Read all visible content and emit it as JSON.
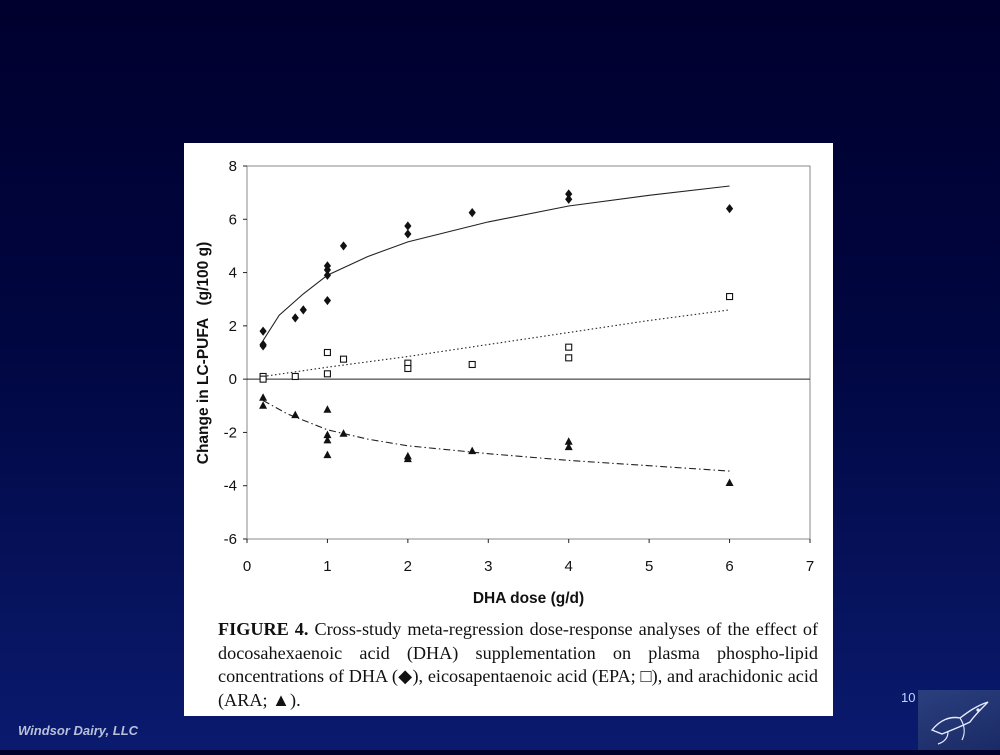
{
  "slide": {
    "slide_number": "10",
    "footer_company": "Windsor Dairy, LLC"
  },
  "caption": {
    "label": "FIGURE 4.",
    "text": " Cross-study meta-regression dose-response analyses of the effect of docosahexaenoic acid (DHA) supplementation on plasma phospho-lipid concentrations of DHA (◆), eicosapentaenoic acid (EPA; □), and arachidonic acid (ARA; ▲)."
  },
  "logo": {
    "icon": "bird-sketch-icon"
  },
  "chart_data": {
    "type": "scatter",
    "xlabel": "DHA dose (g/d)",
    "ylabel": "Change in LC-PUFA   (g/100 g)",
    "xlim": [
      0,
      7
    ],
    "ylim": [
      -6,
      8
    ],
    "xticks": [
      0,
      1,
      2,
      3,
      4,
      5,
      6,
      7
    ],
    "yticks": [
      -6,
      -4,
      -2,
      0,
      2,
      4,
      6,
      8
    ],
    "grid": false,
    "legend": "none",
    "series": [
      {
        "marker": "diamond",
        "line_style": "solid",
        "points": [
          [
            0.2,
            1.8
          ],
          [
            0.2,
            1.3
          ],
          [
            0.2,
            1.25
          ],
          [
            0.6,
            2.3
          ],
          [
            0.7,
            2.6
          ],
          [
            1.0,
            4.25
          ],
          [
            1.0,
            4.1
          ],
          [
            1.0,
            3.9
          ],
          [
            1.0,
            2.95
          ],
          [
            1.2,
            5.0
          ],
          [
            2.0,
            5.75
          ],
          [
            2.0,
            5.45
          ],
          [
            2.8,
            6.25
          ],
          [
            4.0,
            6.95
          ],
          [
            4.0,
            6.75
          ],
          [
            6.0,
            6.4
          ]
        ],
        "fit": [
          [
            0.2,
            1.45
          ],
          [
            0.4,
            2.4
          ],
          [
            0.7,
            3.2
          ],
          [
            1.0,
            3.9
          ],
          [
            1.5,
            4.6
          ],
          [
            2.0,
            5.15
          ],
          [
            3.0,
            5.9
          ],
          [
            4.0,
            6.5
          ],
          [
            5.0,
            6.9
          ],
          [
            6.0,
            7.25
          ]
        ]
      },
      {
        "marker": "open-square",
        "line_style": "dotted",
        "points": [
          [
            0.2,
            0.1
          ],
          [
            0.2,
            0.0
          ],
          [
            0.6,
            0.1
          ],
          [
            1.0,
            1.0
          ],
          [
            1.0,
            0.2
          ],
          [
            1.2,
            0.75
          ],
          [
            2.0,
            0.6
          ],
          [
            2.0,
            0.4
          ],
          [
            2.8,
            0.55
          ],
          [
            4.0,
            1.2
          ],
          [
            4.0,
            0.8
          ],
          [
            6.0,
            3.1
          ]
        ],
        "fit": [
          [
            0.2,
            0.1
          ],
          [
            1.0,
            0.45
          ],
          [
            2.0,
            0.85
          ],
          [
            3.0,
            1.3
          ],
          [
            4.0,
            1.75
          ],
          [
            5.0,
            2.2
          ],
          [
            6.0,
            2.6
          ]
        ]
      },
      {
        "marker": "triangle",
        "line_style": "dash-dot",
        "points": [
          [
            0.2,
            -0.7
          ],
          [
            0.2,
            -1.0
          ],
          [
            0.6,
            -1.35
          ],
          [
            1.0,
            -1.15
          ],
          [
            1.0,
            -2.1
          ],
          [
            1.0,
            -2.3
          ],
          [
            1.0,
            -2.85
          ],
          [
            1.2,
            -2.05
          ],
          [
            2.0,
            -2.9
          ],
          [
            2.0,
            -3.0
          ],
          [
            2.8,
            -2.7
          ],
          [
            4.0,
            -2.35
          ],
          [
            4.0,
            -2.55
          ],
          [
            6.0,
            -3.9
          ]
        ],
        "fit": [
          [
            0.2,
            -0.8
          ],
          [
            0.5,
            -1.3
          ],
          [
            1.0,
            -1.9
          ],
          [
            1.5,
            -2.25
          ],
          [
            2.0,
            -2.5
          ],
          [
            3.0,
            -2.8
          ],
          [
            4.0,
            -3.05
          ],
          [
            5.0,
            -3.25
          ],
          [
            6.0,
            -3.45
          ]
        ]
      }
    ]
  }
}
